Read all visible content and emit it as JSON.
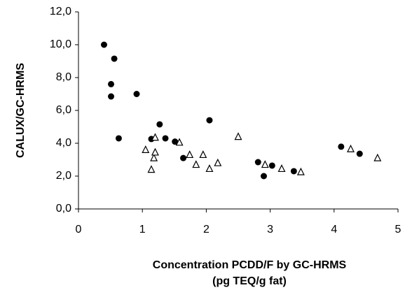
{
  "chart_data": {
    "type": "scatter",
    "ylabel": "CALUX/GC-HRMS",
    "xlabel": [
      "Concentration PCDD/F by GC-HRMS",
      "(pg TEQ/g fat)"
    ],
    "xlim": [
      0,
      5
    ],
    "xticks": [
      0,
      1,
      2,
      3,
      4,
      5
    ],
    "ylim": [
      0,
      12
    ],
    "yticks": [
      {
        "value": 0,
        "label": "0,0"
      },
      {
        "value": 2,
        "label": "2,0"
      },
      {
        "value": 4,
        "label": "4,0"
      },
      {
        "value": 6,
        "label": "6,0"
      },
      {
        "value": 8,
        "label": "8,0"
      },
      {
        "value": 10,
        "label": "10,0"
      },
      {
        "value": 12,
        "label": "12,0"
      }
    ],
    "series": [
      {
        "marker": "circle",
        "color": "#000000",
        "x": [
          0.4,
          0.56,
          0.51,
          0.51,
          0.63,
          0.91,
          1.14,
          1.27,
          1.36,
          1.51,
          1.64,
          2.05,
          2.81,
          2.9,
          3.03,
          3.37,
          4.11,
          4.4
        ],
        "values": [
          10.0,
          9.15,
          7.6,
          6.85,
          4.3,
          7.0,
          4.26,
          5.15,
          4.3,
          4.1,
          3.1,
          5.4,
          2.85,
          2.0,
          2.64,
          2.3,
          3.79,
          3.36
        ]
      },
      {
        "marker": "triangle",
        "color": "#000000",
        "x": [
          1.05,
          1.14,
          1.18,
          1.2,
          1.2,
          1.58,
          1.74,
          1.84,
          1.95,
          2.05,
          2.18,
          2.5,
          2.92,
          3.18,
          3.48,
          4.26,
          4.68
        ],
        "values": [
          3.6,
          2.4,
          3.1,
          3.45,
          4.35,
          4.05,
          3.3,
          2.7,
          3.3,
          2.45,
          2.8,
          4.4,
          2.7,
          2.45,
          2.25,
          3.65,
          3.1
        ]
      }
    ]
  }
}
